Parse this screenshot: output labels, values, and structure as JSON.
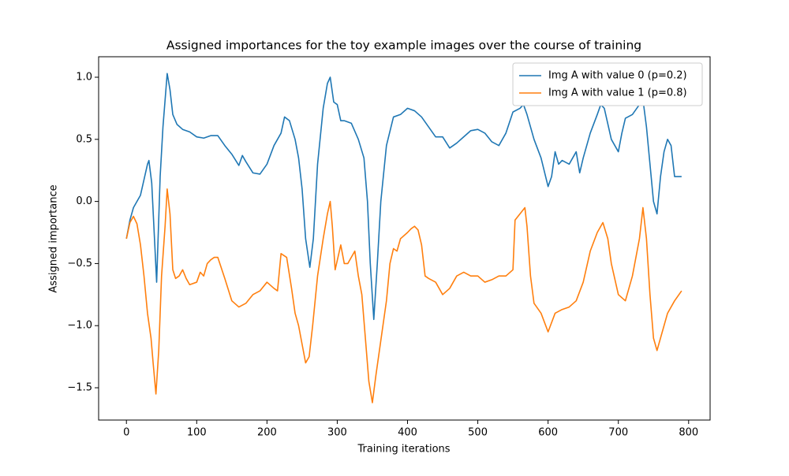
{
  "chart_data": {
    "type": "line",
    "title": "Assigned importances for the toy example images over the course of training",
    "x_label": "Training iterations",
    "y_label": "Assigned importance",
    "xlim": [
      -39.55,
      830.55
    ],
    "xticks": [
      0,
      100,
      200,
      300,
      400,
      500,
      600,
      700,
      800
    ],
    "ylim": [
      -1.76,
      1.165
    ],
    "yticks": [
      {
        "value": -1.5,
        "label": "−1.5"
      },
      {
        "value": -1.0,
        "label": "−1.0"
      },
      {
        "value": -0.5,
        "label": "−0.5"
      },
      {
        "value": 0,
        "label": "0.0"
      },
      0.5,
      {
        "value": 1.0,
        "label": "1.0"
      }
    ],
    "legend": "upper right",
    "grid": false,
    "series": [
      {
        "name": "Img A with value 0 (p=0.2)",
        "color": "#1f77b4",
        "x": [
          0,
          5,
          10,
          20,
          30,
          32,
          36,
          43,
          48,
          52,
          58,
          62,
          66,
          72,
          80,
          90,
          100,
          110,
          120,
          130,
          140,
          150,
          160,
          165,
          170,
          180,
          190,
          200,
          210,
          220,
          225,
          232,
          240,
          245,
          250,
          255,
          261,
          266,
          272,
          280,
          286,
          290,
          295,
          300,
          305,
          310,
          320,
          330,
          338,
          343,
          347,
          352,
          357,
          362,
          370,
          380,
          390,
          400,
          410,
          420,
          430,
          440,
          450,
          460,
          470,
          480,
          490,
          500,
          510,
          520,
          530,
          540,
          550,
          560,
          565,
          570,
          580,
          590,
          600,
          605,
          610,
          615,
          620,
          630,
          640,
          645,
          650,
          660,
          670,
          675,
          680,
          690,
          700,
          705,
          710,
          720,
          730,
          735,
          740,
          745,
          750,
          755,
          760,
          765,
          770,
          775,
          780,
          785,
          790
        ],
        "values": [
          -0.3,
          -0.15,
          -0.05,
          0.05,
          0.3,
          0.33,
          0.15,
          -0.65,
          0.2,
          0.6,
          1.03,
          0.9,
          0.7,
          0.62,
          0.58,
          0.56,
          0.52,
          0.51,
          0.53,
          0.53,
          0.45,
          0.38,
          0.29,
          0.37,
          0.32,
          0.23,
          0.22,
          0.3,
          0.45,
          0.55,
          0.68,
          0.65,
          0.5,
          0.35,
          0.1,
          -0.3,
          -0.53,
          -0.3,
          0.3,
          0.75,
          0.95,
          1.0,
          0.8,
          0.78,
          0.65,
          0.65,
          0.63,
          0.5,
          0.35,
          0.0,
          -0.5,
          -0.95,
          -0.5,
          0.0,
          0.45,
          0.68,
          0.7,
          0.75,
          0.73,
          0.68,
          0.6,
          0.52,
          0.52,
          0.43,
          0.47,
          0.52,
          0.57,
          0.58,
          0.55,
          0.48,
          0.45,
          0.55,
          0.72,
          0.75,
          0.78,
          0.7,
          0.5,
          0.35,
          0.12,
          0.2,
          0.4,
          0.3,
          0.33,
          0.3,
          0.4,
          0.23,
          0.35,
          0.55,
          0.7,
          0.78,
          0.75,
          0.5,
          0.4,
          0.55,
          0.67,
          0.7,
          0.78,
          0.82,
          0.6,
          0.3,
          0.0,
          -0.1,
          0.2,
          0.4,
          0.5,
          0.45,
          0.2,
          0.2,
          0.2
        ]
      },
      {
        "name": "Img A with value 1 (p=0.8)",
        "color": "#ff7f0e",
        "x": [
          0,
          5,
          10,
          15,
          20,
          25,
          30,
          35,
          38,
          42,
          46,
          50,
          55,
          58,
          62,
          66,
          70,
          75,
          80,
          85,
          90,
          100,
          105,
          110,
          115,
          120,
          125,
          130,
          140,
          150,
          160,
          170,
          180,
          190,
          200,
          210,
          215,
          220,
          228,
          235,
          240,
          245,
          250,
          255,
          260,
          265,
          272,
          280,
          286,
          290,
          293,
          297,
          305,
          310,
          315,
          320,
          325,
          330,
          335,
          340,
          345,
          350,
          355,
          360,
          370,
          375,
          380,
          385,
          390,
          400,
          405,
          410,
          415,
          420,
          425,
          430,
          440,
          450,
          460,
          470,
          480,
          490,
          500,
          510,
          520,
          530,
          540,
          550,
          553,
          560,
          567,
          570,
          575,
          580,
          590,
          600,
          610,
          620,
          630,
          640,
          650,
          660,
          670,
          678,
          685,
          690,
          700,
          710,
          720,
          730,
          735,
          740,
          745,
          750,
          755,
          760,
          770,
          780,
          790
        ],
        "values": [
          -0.3,
          -0.17,
          -0.12,
          -0.18,
          -0.35,
          -0.6,
          -0.9,
          -1.1,
          -1.3,
          -1.55,
          -1.2,
          -0.6,
          -0.2,
          0.1,
          -0.1,
          -0.55,
          -0.62,
          -0.6,
          -0.55,
          -0.62,
          -0.67,
          -0.65,
          -0.57,
          -0.6,
          -0.5,
          -0.47,
          -0.45,
          -0.45,
          -0.62,
          -0.8,
          -0.85,
          -0.82,
          -0.75,
          -0.72,
          -0.65,
          -0.7,
          -0.72,
          -0.42,
          -0.45,
          -0.7,
          -0.9,
          -1.0,
          -1.15,
          -1.3,
          -1.25,
          -1.0,
          -0.6,
          -0.3,
          -0.1,
          0.0,
          -0.2,
          -0.55,
          -0.35,
          -0.5,
          -0.5,
          -0.45,
          -0.4,
          -0.6,
          -0.75,
          -1.1,
          -1.45,
          -1.62,
          -1.4,
          -1.2,
          -0.8,
          -0.5,
          -0.38,
          -0.4,
          -0.3,
          -0.25,
          -0.22,
          -0.2,
          -0.23,
          -0.35,
          -0.6,
          -0.62,
          -0.65,
          -0.75,
          -0.7,
          -0.6,
          -0.57,
          -0.6,
          -0.6,
          -0.65,
          -0.63,
          -0.6,
          -0.6,
          -0.55,
          -0.15,
          -0.1,
          -0.05,
          -0.2,
          -0.6,
          -0.82,
          -0.9,
          -1.05,
          -0.9,
          -0.87,
          -0.85,
          -0.8,
          -0.65,
          -0.4,
          -0.25,
          -0.17,
          -0.3,
          -0.5,
          -0.75,
          -0.8,
          -0.6,
          -0.3,
          -0.05,
          -0.3,
          -0.75,
          -1.1,
          -1.2,
          -1.1,
          -0.9,
          -0.8,
          -0.72
        ]
      }
    ]
  }
}
